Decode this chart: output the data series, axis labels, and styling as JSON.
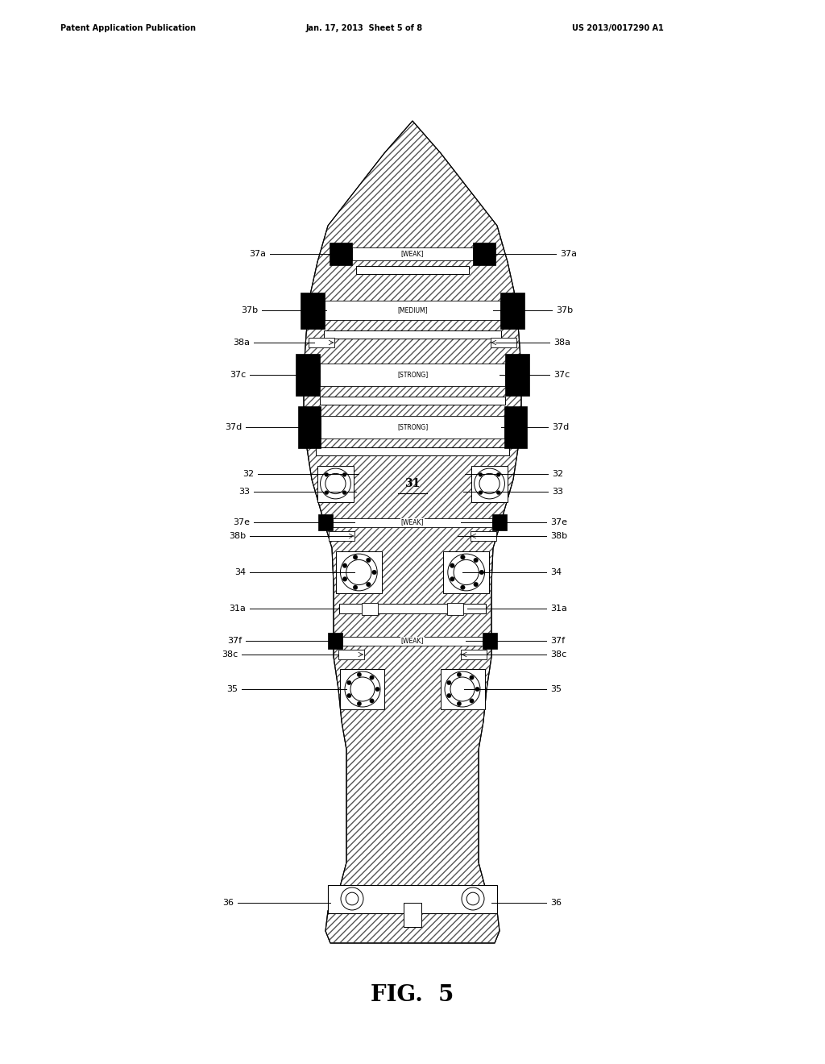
{
  "bg_color": "#ffffff",
  "header_left": "Patent Application Publication",
  "header_mid": "Jan. 17, 2013  Sheet 5 of 8",
  "header_right": "US 2013/0017290 A1",
  "caption": "FIG.  5",
  "outline_color": "#000000",
  "fig_width": 10.24,
  "fig_height": 13.2,
  "dpi": 100
}
